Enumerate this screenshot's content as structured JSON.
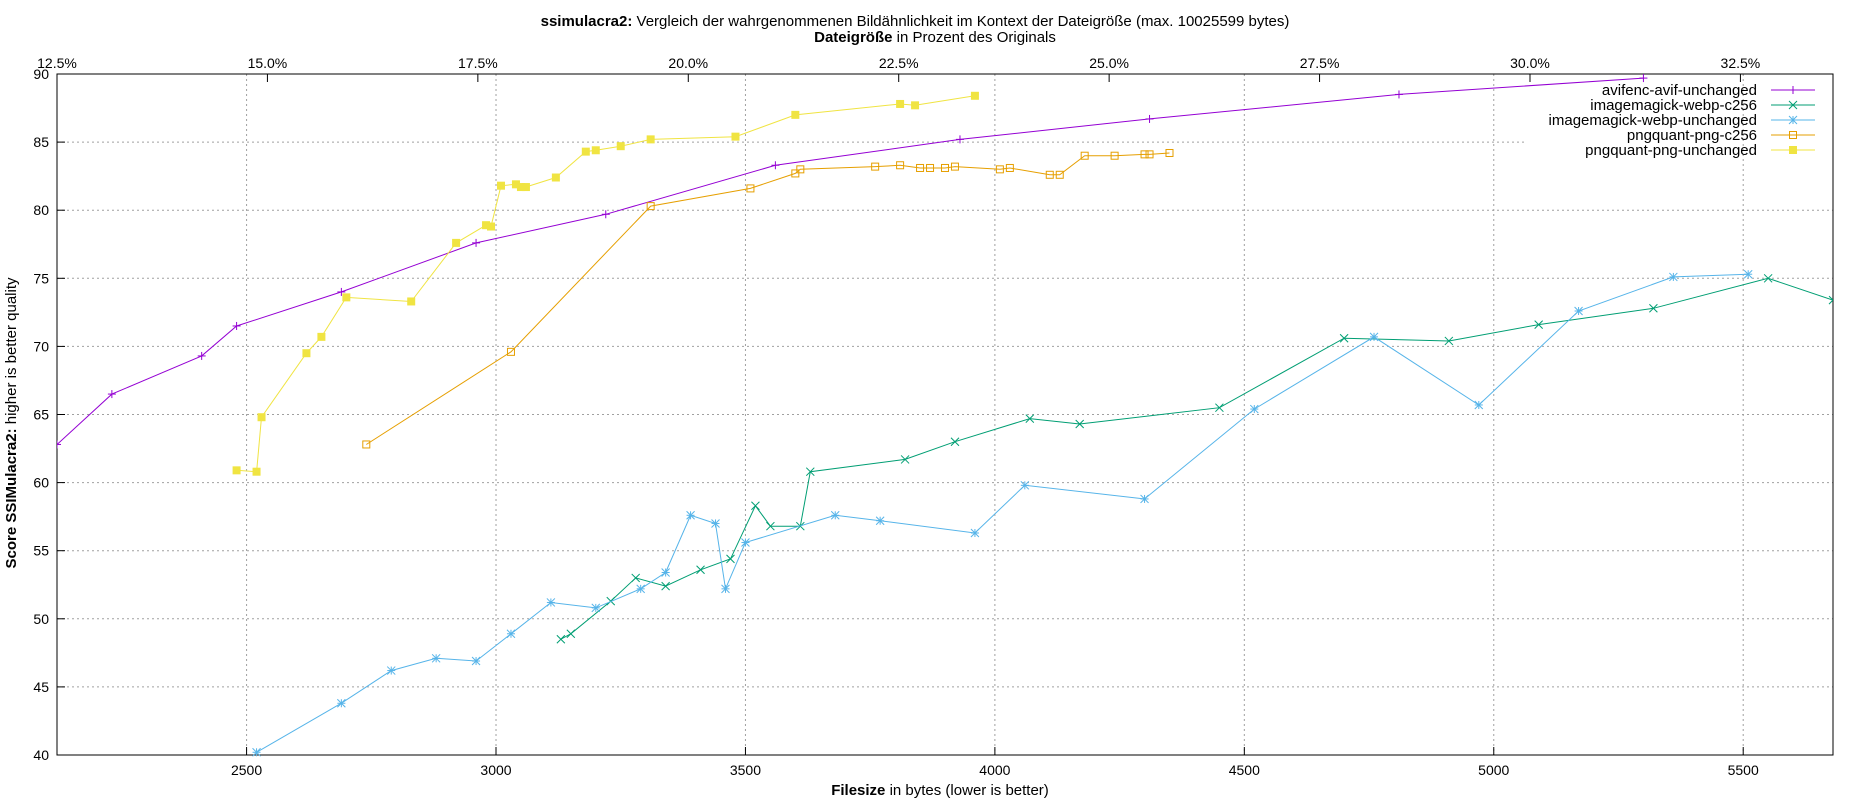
{
  "chart_data": {
    "type": "line",
    "title_bold": "ssimulacra2:",
    "title_rest": " Vergleich der wahrgenommenen Bildähnlichkeit im Kontext der Dateigröße (max. 10025599 bytes)",
    "x2label_bold": "Dateigröße",
    "x2label_rest": " in Prozent des Originals",
    "xlabel_bold": "Filesize",
    "xlabel_rest": " in bytes (lower is better)",
    "ylabel_bold": "Score SSIMulacra2:",
    "ylabel_rest": " higher is better quality",
    "xlim": [
      2120,
      5680
    ],
    "ylim": [
      40,
      90
    ],
    "x_ticks": [
      2500,
      3000,
      3500,
      4000,
      4500,
      5000,
      5500
    ],
    "y_ticks": [
      40,
      45,
      50,
      55,
      60,
      65,
      70,
      75,
      80,
      85,
      90
    ],
    "x2_max_bytes": 10025599,
    "x2_ticks": [
      "12.5%",
      "15.0%",
      "17.5%",
      "20.0%",
      "22.5%",
      "25.0%",
      "27.5%",
      "30.0%",
      "32.5%"
    ],
    "x2_tick_values": [
      12.5,
      15.0,
      17.5,
      20.0,
      22.5,
      25.0,
      27.5,
      30.0,
      32.5
    ],
    "x2_range_percent": [
      12.5,
      33.6
    ],
    "grid": true,
    "legend_position": "top-right",
    "series": [
      {
        "name": "avifenc-avif-unchanged",
        "color": "#9400d3",
        "marker": "plus",
        "points": [
          [
            2120,
            62.8
          ],
          [
            2230,
            66.5
          ],
          [
            2410,
            69.3
          ],
          [
            2480,
            71.5
          ],
          [
            2690,
            74.0
          ],
          [
            2960,
            77.6
          ],
          [
            3220,
            79.7
          ],
          [
            3560,
            83.3
          ],
          [
            3930,
            85.2
          ],
          [
            4310,
            86.7
          ],
          [
            4810,
            88.5
          ],
          [
            5300,
            89.7
          ]
        ]
      },
      {
        "name": "imagemagick-webp-c256",
        "color": "#009e73",
        "marker": "x",
        "points": [
          [
            3130,
            48.5
          ],
          [
            3150,
            48.9
          ],
          [
            3230,
            51.3
          ],
          [
            3280,
            53.0
          ],
          [
            3340,
            52.4
          ],
          [
            3410,
            53.6
          ],
          [
            3470,
            54.4
          ],
          [
            3520,
            58.3
          ],
          [
            3550,
            56.8
          ],
          [
            3610,
            56.8
          ],
          [
            3630,
            60.8
          ],
          [
            3820,
            61.7
          ],
          [
            3920,
            63.0
          ],
          [
            4070,
            64.7
          ],
          [
            4170,
            64.3
          ],
          [
            4450,
            65.5
          ],
          [
            4700,
            70.6
          ],
          [
            4910,
            70.4
          ],
          [
            5090,
            71.6
          ],
          [
            5320,
            72.8
          ],
          [
            5550,
            75.0
          ],
          [
            5680,
            73.4
          ]
        ]
      },
      {
        "name": "imagemagick-webp-unchanged",
        "color": "#56b4e9",
        "marker": "star",
        "points": [
          [
            2520,
            40.2
          ],
          [
            2690,
            43.8
          ],
          [
            2790,
            46.2
          ],
          [
            2880,
            47.1
          ],
          [
            2960,
            46.9
          ],
          [
            3030,
            48.9
          ],
          [
            3110,
            51.2
          ],
          [
            3200,
            50.8
          ],
          [
            3290,
            52.2
          ],
          [
            3340,
            53.4
          ],
          [
            3390,
            57.6
          ],
          [
            3440,
            57.0
          ],
          [
            3460,
            52.2
          ],
          [
            3500,
            55.6
          ],
          [
            3680,
            57.6
          ],
          [
            3770,
            57.2
          ],
          [
            3960,
            56.3
          ],
          [
            4060,
            59.8
          ],
          [
            4300,
            58.8
          ],
          [
            4520,
            65.4
          ],
          [
            4760,
            70.7
          ],
          [
            4970,
            65.7
          ],
          [
            5170,
            72.6
          ],
          [
            5360,
            75.1
          ],
          [
            5510,
            75.3
          ]
        ]
      },
      {
        "name": "pngquant-png-c256",
        "color": "#e69f00",
        "marker": "square",
        "points": [
          [
            2740,
            62.8
          ],
          [
            3030,
            69.6
          ],
          [
            3310,
            80.3
          ],
          [
            3510,
            81.6
          ],
          [
            3600,
            82.7
          ],
          [
            3610,
            83.0
          ],
          [
            3760,
            83.2
          ],
          [
            3810,
            83.3
          ],
          [
            3850,
            83.1
          ],
          [
            3870,
            83.1
          ],
          [
            3900,
            83.1
          ],
          [
            3920,
            83.2
          ],
          [
            4010,
            83.0
          ],
          [
            4030,
            83.1
          ],
          [
            4110,
            82.6
          ],
          [
            4130,
            82.6
          ],
          [
            4180,
            84.0
          ],
          [
            4240,
            84.0
          ],
          [
            4300,
            84.1
          ],
          [
            4310,
            84.1
          ],
          [
            4350,
            84.2
          ]
        ]
      },
      {
        "name": "pngquant-png-unchanged",
        "color": "#f0e442",
        "marker": "filled-square",
        "points": [
          [
            2480,
            60.9
          ],
          [
            2520,
            60.8
          ],
          [
            2530,
            64.8
          ],
          [
            2620,
            69.5
          ],
          [
            2650,
            70.7
          ],
          [
            2700,
            73.6
          ],
          [
            2830,
            73.3
          ],
          [
            2920,
            77.6
          ],
          [
            2980,
            78.9
          ],
          [
            2990,
            78.8
          ],
          [
            3010,
            81.8
          ],
          [
            3040,
            81.9
          ],
          [
            3050,
            81.7
          ],
          [
            3060,
            81.7
          ],
          [
            3120,
            82.4
          ],
          [
            3180,
            84.3
          ],
          [
            3200,
            84.4
          ],
          [
            3250,
            84.7
          ],
          [
            3310,
            85.2
          ],
          [
            3480,
            85.4
          ],
          [
            3600,
            87.0
          ],
          [
            3810,
            87.8
          ],
          [
            3840,
            87.7
          ],
          [
            3960,
            88.4
          ]
        ]
      }
    ]
  }
}
